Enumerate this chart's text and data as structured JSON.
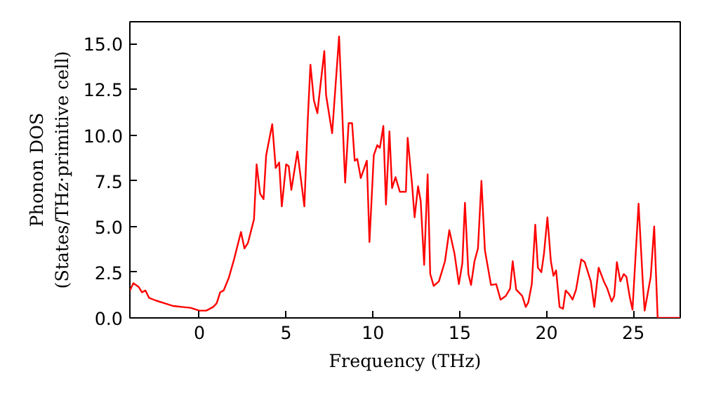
{
  "chart_data": {
    "type": "line",
    "xlabel": "Frequency (THz)",
    "ylabel": "Phonon DOS\n(States/THz·primitive cell)",
    "xlim": [
      -4,
      27.7
    ],
    "ylim": [
      0,
      16.2
    ],
    "xticks": [
      0,
      5,
      10,
      15,
      20,
      25
    ],
    "yticks": [
      {
        "value": 0,
        "label": "0.0"
      },
      {
        "value": 2.5,
        "label": "2.5"
      },
      {
        "value": 5,
        "label": "5.0"
      },
      {
        "value": 7.5,
        "label": "7.5"
      },
      {
        "value": 10,
        "label": "10.0"
      },
      {
        "value": 12.5,
        "label": "12.5"
      },
      {
        "value": 15,
        "label": "15.0"
      }
    ],
    "grid": false,
    "series": [
      {
        "color": "#ff0000",
        "x": [
          -4.0,
          -3.8,
          -3.5,
          -3.3,
          -3.1,
          -2.9,
          -2.5,
          -2.0,
          -1.5,
          -1.0,
          -0.5,
          0.0,
          0.4,
          0.8,
          1.0,
          1.2,
          1.4,
          1.7,
          2.0,
          2.4,
          2.6,
          2.8,
          3.15,
          3.3,
          3.5,
          3.7,
          3.85,
          4.2,
          4.4,
          4.6,
          4.75,
          5.0,
          5.15,
          5.3,
          5.65,
          6.05,
          6.25,
          6.4,
          6.6,
          6.8,
          6.95,
          7.2,
          7.3,
          7.65,
          8.05,
          8.4,
          8.6,
          8.8,
          8.95,
          9.1,
          9.3,
          9.65,
          9.8,
          10.05,
          10.25,
          10.4,
          10.6,
          10.75,
          10.95,
          11.1,
          11.3,
          11.55,
          11.9,
          12.0,
          12.25,
          12.4,
          12.6,
          12.75,
          12.95,
          13.15,
          13.3,
          13.5,
          13.8,
          14.15,
          14.4,
          14.7,
          14.95,
          15.15,
          15.3,
          15.5,
          15.65,
          15.85,
          16.05,
          16.25,
          16.45,
          16.8,
          17.1,
          17.35,
          17.65,
          17.9,
          18.05,
          18.25,
          18.6,
          18.8,
          18.95,
          19.15,
          19.35,
          19.5,
          19.7,
          19.85,
          20.05,
          20.25,
          20.4,
          20.55,
          20.75,
          20.95,
          21.1,
          21.3,
          21.5,
          21.7,
          22.0,
          22.2,
          22.55,
          22.75,
          23.0,
          23.3,
          23.5,
          23.75,
          23.9,
          24.05,
          24.25,
          24.45,
          24.6,
          24.8,
          24.95,
          25.3,
          25.55,
          25.65,
          26.0,
          26.2,
          26.4,
          27.7
        ],
        "values": [
          1.5,
          1.9,
          1.7,
          1.4,
          1.5,
          1.1,
          0.95,
          0.8,
          0.65,
          0.6,
          0.55,
          0.4,
          0.4,
          0.6,
          0.8,
          1.4,
          1.5,
          2.2,
          3.2,
          4.7,
          3.8,
          4.1,
          5.4,
          8.4,
          6.8,
          6.5,
          8.9,
          10.6,
          8.2,
          8.5,
          6.1,
          8.4,
          8.3,
          7.0,
          9.1,
          6.1,
          10.9,
          13.85,
          11.9,
          11.2,
          12.5,
          14.6,
          12.2,
          10.1,
          15.4,
          7.4,
          10.65,
          10.65,
          8.6,
          8.7,
          7.65,
          8.6,
          4.15,
          8.9,
          9.45,
          9.3,
          10.5,
          6.2,
          10.2,
          7.1,
          7.7,
          6.9,
          6.9,
          9.85,
          7.35,
          5.5,
          7.2,
          6.4,
          2.9,
          7.85,
          2.4,
          1.75,
          2.0,
          3.1,
          4.8,
          3.5,
          1.85,
          3.0,
          6.3,
          2.4,
          1.8,
          3.1,
          3.8,
          7.5,
          3.7,
          1.8,
          1.85,
          1.0,
          1.2,
          1.6,
          3.1,
          1.55,
          1.2,
          0.6,
          0.85,
          1.85,
          5.1,
          2.75,
          2.5,
          3.5,
          5.5,
          3.1,
          2.3,
          2.6,
          0.6,
          0.5,
          1.5,
          1.3,
          1.0,
          1.55,
          3.2,
          3.05,
          2.0,
          0.6,
          2.75,
          2.0,
          1.6,
          0.9,
          1.2,
          3.05,
          2.0,
          2.4,
          2.25,
          1.1,
          0.45,
          6.25,
          1.85,
          0.4,
          2.25,
          5.0,
          0.0,
          0.0
        ]
      }
    ]
  }
}
